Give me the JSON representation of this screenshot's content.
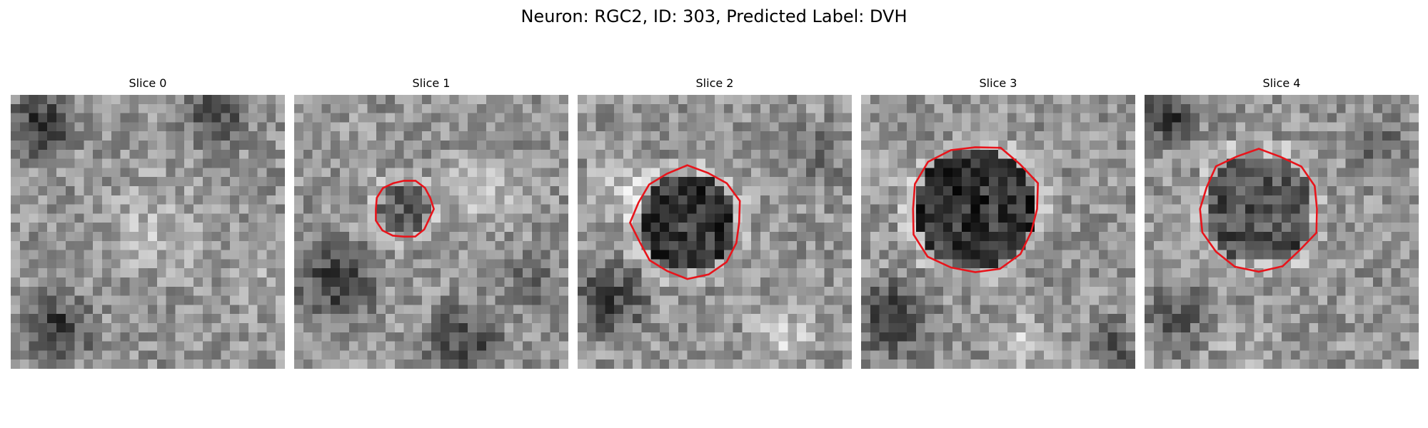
{
  "figure": {
    "title": "Neuron: RGC2, ID: 303, Predicted Label: DVH"
  },
  "panels": [
    {
      "title": "Slice 0",
      "has_contour": false,
      "seed": 11
    },
    {
      "title": "Slice 1",
      "has_contour": true,
      "seed": 23
    },
    {
      "title": "Slice 2",
      "has_contour": true,
      "seed": 37
    },
    {
      "title": "Slice 3",
      "has_contour": true,
      "seed": 41
    },
    {
      "title": "Slice 4",
      "has_contour": true,
      "seed": 59
    }
  ],
  "colors": {
    "contour": "#e8141b",
    "background": "#ffffff"
  }
}
